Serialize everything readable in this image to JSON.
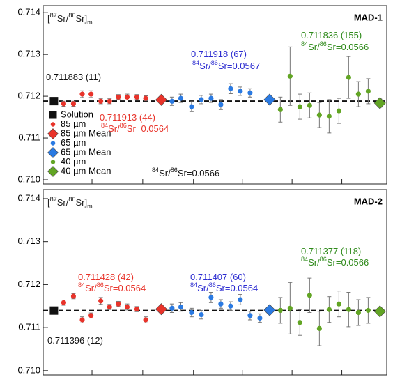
{
  "chart_data": [
    {
      "type": "scatter",
      "title": "MAD-1",
      "ylabel": [
        "[",
        "87",
        "Sr/",
        "86",
        "Sr]",
        "m"
      ],
      "xlim": [
        0,
        35.2
      ],
      "xticks": [
        5,
        10.2,
        15.4,
        20.4,
        25.5,
        30.6
      ],
      "ylim": [
        0.7099,
        0.71417
      ],
      "yticks": [
        {
          "value": 0.71,
          "label": "0.710"
        },
        0.711,
        0.712,
        0.713,
        0.714
      ],
      "legend": "bottom-left",
      "series": [
        {
          "name": "Solution",
          "color": "#111111",
          "marker": "square",
          "x": [
            1.1
          ],
          "values": [
            0.711883
          ],
          "errors": [
            3e-05
          ]
        },
        {
          "name": "85 µm",
          "color": "#e8332a",
          "marker": "circle",
          "x": [
            2.1,
            3.1,
            4,
            4.9,
            5.9,
            6.8,
            7.7,
            8.6,
            9.6,
            10.5
          ],
          "values": [
            0.71182,
            0.71182,
            0.71205,
            0.71205,
            0.71188,
            0.71188,
            0.71198,
            0.71198,
            0.71198,
            0.71195
          ],
          "errors": [
            6e-05,
            6e-05,
            8e-05,
            8e-05,
            6e-05,
            6e-05,
            6e-05,
            7e-05,
            6e-05,
            6e-05
          ]
        },
        {
          "name": "85 µm Mean",
          "color": "#e8332a",
          "marker": "diamond",
          "x": [
            12.1
          ],
          "values": [
            0.711913
          ],
          "errors": [
            3e-05
          ]
        },
        {
          "name": "65 µm",
          "color": "#2a7ae2",
          "marker": "circle",
          "x": [
            13.2,
            14.1,
            15.2,
            16.2,
            17.2,
            18.2,
            19.2,
            20.2,
            21.2
          ],
          "values": [
            0.71188,
            0.71195,
            0.71175,
            0.71192,
            0.71195,
            0.7118,
            0.71218,
            0.71212,
            0.71208
          ],
          "errors": [
            0.0001,
            0.0001,
            0.00012,
            0.0001,
            0.0001,
            0.00012,
            0.00012,
            0.0001,
            0.0001
          ]
        },
        {
          "name": "65 µm Mean",
          "color": "#2a7ae2",
          "marker": "diamond",
          "x": [
            23.2
          ],
          "values": [
            0.711918
          ],
          "errors": [
            3e-05
          ]
        },
        {
          "name": "40 µm",
          "color": "#62a524",
          "marker": "circle",
          "x": [
            24.3,
            25.3,
            26.3,
            27.3,
            28.3,
            29.3,
            30.3,
            31.3,
            32.3,
            33.3
          ],
          "values": [
            0.71168,
            0.71248,
            0.71175,
            0.71178,
            0.71155,
            0.71152,
            0.71165,
            0.71245,
            0.71205,
            0.71212
          ],
          "errors": [
            0.0003,
            0.0007,
            0.0003,
            0.0003,
            0.0003,
            0.0004,
            0.0003,
            0.0005,
            0.0003,
            0.0003
          ]
        },
        {
          "name": "40 µm Mean",
          "color": "#62a524",
          "marker": "diamond",
          "x": [
            34.5
          ],
          "values": [
            0.711836
          ],
          "errors": [
            0.0001
          ]
        }
      ],
      "annotations": [
        {
          "parts": [
            "0.711883 (11)"
          ],
          "color": "#111111"
        },
        {
          "parts": [
            "0.711913 (44)"
          ],
          "color": "#e8332a"
        },
        {
          "parts": [
            "84",
            "Sr/",
            "86",
            "Sr=0.0564"
          ],
          "color": "#e8332a"
        },
        {
          "parts": [
            "0.711918 (67)"
          ],
          "color": "#2b2bd0"
        },
        {
          "parts": [
            "84",
            "Sr/",
            "86",
            "Sr=0.0567"
          ],
          "color": "#2b2bd0"
        },
        {
          "parts": [
            "0.711836 (155)"
          ],
          "color": "#2e8a1a"
        },
        {
          "parts": [
            "84",
            "Sr/",
            "86",
            "Sr=0.0566"
          ],
          "color": "#2e8a1a"
        },
        {
          "parts": [
            "84",
            "Sr/",
            "86",
            "Sr=0.0566"
          ],
          "color": "#111111"
        }
      ]
    },
    {
      "type": "scatter",
      "title": "MAD-2",
      "ylabel": [
        "[",
        "87",
        "Sr/",
        "86",
        "Sr]",
        "m"
      ],
      "xlim": [
        0,
        35.2
      ],
      "xticks": [
        5,
        10.2,
        15.4,
        20.4,
        25.5,
        30.6
      ],
      "ylim": [
        0.7099,
        0.71421
      ],
      "yticks": [
        {
          "value": 0.71,
          "label": "0.710"
        },
        0.711,
        0.712,
        0.713,
        0.714
      ],
      "series": [
        {
          "color": "#111111",
          "marker": "square",
          "x": [
            1.1
          ],
          "values": [
            0.711396
          ],
          "errors": [
            3e-05
          ]
        },
        {
          "color": "#e8332a",
          "marker": "circle",
          "x": [
            2.1,
            3.1,
            4,
            4.9,
            5.9,
            6.8,
            7.7,
            8.6,
            9.6,
            10.5
          ],
          "values": [
            0.71158,
            0.71173,
            0.71118,
            0.71128,
            0.71162,
            0.71148,
            0.71155,
            0.71148,
            0.71143,
            0.71118
          ],
          "errors": [
            6e-05,
            6e-05,
            7e-05,
            6e-05,
            8e-05,
            6e-05,
            6e-05,
            7e-05,
            6e-05,
            7e-05
          ]
        },
        {
          "color": "#e8332a",
          "marker": "diamond",
          "x": [
            12.1
          ],
          "values": [
            0.711428
          ],
          "errors": [
            3e-05
          ]
        },
        {
          "color": "#2a7ae2",
          "marker": "circle",
          "x": [
            13.2,
            14.1,
            15.2,
            16.2,
            17.2,
            18.2,
            19.2,
            20.2,
            21.2,
            22.2
          ],
          "values": [
            0.71145,
            0.71148,
            0.71135,
            0.7113,
            0.7117,
            0.71155,
            0.7115,
            0.71165,
            0.71128,
            0.71122
          ],
          "errors": [
            0.0001,
            0.0001,
            0.0001,
            0.0001,
            0.00012,
            0.0001,
            0.0001,
            0.00012,
            0.0001,
            0.0001
          ]
        },
        {
          "color": "#2a7ae2",
          "marker": "diamond",
          "x": [
            23.2
          ],
          "values": [
            0.711407
          ],
          "errors": [
            3e-05
          ]
        },
        {
          "color": "#62a524",
          "marker": "circle",
          "x": [
            24.3,
            25.3,
            26.3,
            27.3,
            28.3,
            29.3,
            30.3,
            31.3,
            32.3,
            33.3
          ],
          "values": [
            0.7114,
            0.71145,
            0.71112,
            0.71175,
            0.71098,
            0.71142,
            0.71155,
            0.71142,
            0.71135,
            0.7114
          ],
          "errors": [
            0.0003,
            0.0006,
            0.0003,
            0.0004,
            0.0004,
            0.0003,
            0.0003,
            0.0004,
            0.0003,
            0.0003
          ]
        },
        {
          "color": "#62a524",
          "marker": "diamond",
          "x": [
            34.5
          ],
          "values": [
            0.711377
          ],
          "errors": [
            5e-05
          ]
        }
      ],
      "annotations": [
        {
          "parts": [
            "0.711396 (12)"
          ],
          "color": "#111111"
        },
        {
          "parts": [
            "0.711428 (42)"
          ],
          "color": "#e8332a"
        },
        {
          "parts": [
            "84",
            "Sr/",
            "86",
            "Sr=0.0564"
          ],
          "color": "#e8332a"
        },
        {
          "parts": [
            "0.711407 (60)"
          ],
          "color": "#2b2bd0"
        },
        {
          "parts": [
            "84",
            "Sr/",
            "86",
            "Sr=0.0564"
          ],
          "color": "#2b2bd0"
        },
        {
          "parts": [
            "0.711377 (118)"
          ],
          "color": "#2e8a1a"
        },
        {
          "parts": [
            "84",
            "Sr/",
            "86",
            "Sr=0.0566"
          ],
          "color": "#2e8a1a"
        }
      ]
    }
  ]
}
